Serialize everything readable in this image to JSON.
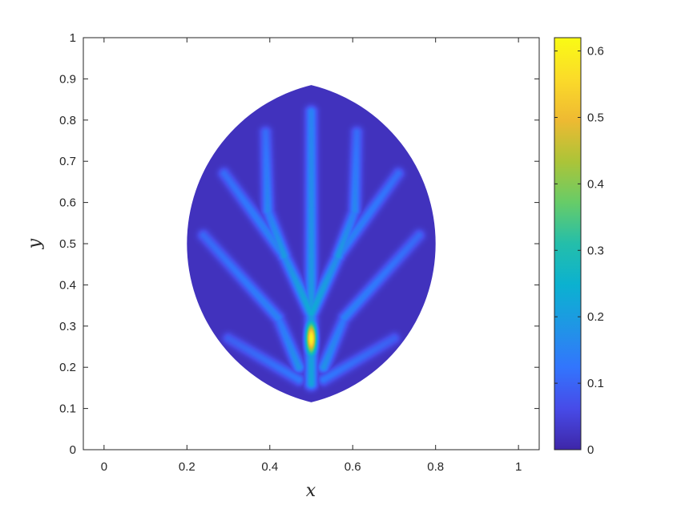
{
  "chart_data": [
    {
      "type": "heatmap",
      "title": "",
      "xlabel": "x",
      "ylabel": "y",
      "xlim": [
        -0.05,
        1.05
      ],
      "ylim": [
        0,
        1
      ],
      "xticks": [
        0,
        0.2,
        0.4,
        0.6,
        0.8,
        1
      ],
      "xtick_labels": [
        "0",
        "0.2",
        "0.4",
        "0.6",
        "0.8",
        "1"
      ],
      "yticks": [
        0,
        0.1,
        0.2,
        0.3,
        0.4,
        0.5,
        0.6,
        0.7,
        0.8,
        0.9,
        1
      ],
      "ytick_labels": [
        "0",
        "0.1",
        "0.2",
        "0.3",
        "0.4",
        "0.5",
        "0.6",
        "0.7",
        "0.8",
        "0.9",
        "1"
      ],
      "grid": false,
      "colormap": "parula",
      "colorbar": {
        "range": [
          0,
          0.62
        ],
        "ticks": [
          0,
          0.1,
          0.2,
          0.3,
          0.4,
          0.5,
          0.6
        ],
        "tick_labels": [
          "0",
          "0.1",
          "0.2",
          "0.3",
          "0.4",
          "0.5",
          "0.6"
        ]
      },
      "domain": {
        "shape": "lens",
        "x_range": [
          0.2,
          0.8
        ],
        "y_range": [
          0.115,
          0.885
        ],
        "tip_x": 0.5
      },
      "background_value": 0.02,
      "hotspot": {
        "x": 0.5,
        "y": 0.27,
        "value": 0.62
      },
      "branches": [
        {
          "from": [
            0.5,
            0.16
          ],
          "to": [
            0.5,
            0.82
          ],
          "peak": 0.2
        },
        {
          "from": [
            0.5,
            0.33
          ],
          "to": [
            0.435,
            0.47
          ],
          "peak": 0.22
        },
        {
          "from": [
            0.435,
            0.47
          ],
          "to": [
            0.395,
            0.58
          ],
          "peak": 0.18
        },
        {
          "from": [
            0.395,
            0.58
          ],
          "to": [
            0.39,
            0.77
          ],
          "peak": 0.14
        },
        {
          "from": [
            0.435,
            0.47
          ],
          "to": [
            0.29,
            0.67
          ],
          "peak": 0.14
        },
        {
          "from": [
            0.5,
            0.33
          ],
          "to": [
            0.565,
            0.47
          ],
          "peak": 0.22
        },
        {
          "from": [
            0.565,
            0.47
          ],
          "to": [
            0.605,
            0.58
          ],
          "peak": 0.18
        },
        {
          "from": [
            0.605,
            0.58
          ],
          "to": [
            0.61,
            0.77
          ],
          "peak": 0.14
        },
        {
          "from": [
            0.565,
            0.47
          ],
          "to": [
            0.71,
            0.67
          ],
          "peak": 0.14
        },
        {
          "from": [
            0.47,
            0.2
          ],
          "to": [
            0.42,
            0.32
          ],
          "peak": 0.16
        },
        {
          "from": [
            0.42,
            0.32
          ],
          "to": [
            0.24,
            0.52
          ],
          "peak": 0.13
        },
        {
          "from": [
            0.53,
            0.2
          ],
          "to": [
            0.58,
            0.32
          ],
          "peak": 0.16
        },
        {
          "from": [
            0.58,
            0.32
          ],
          "to": [
            0.76,
            0.52
          ],
          "peak": 0.13
        },
        {
          "from": [
            0.47,
            0.17
          ],
          "to": [
            0.3,
            0.27
          ],
          "peak": 0.11
        },
        {
          "from": [
            0.53,
            0.17
          ],
          "to": [
            0.7,
            0.27
          ],
          "peak": 0.11
        }
      ]
    }
  ]
}
